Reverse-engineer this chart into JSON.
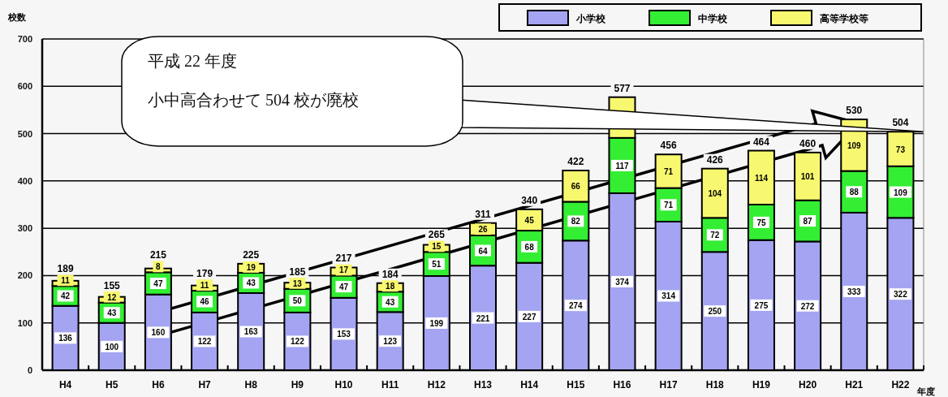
{
  "chart_data": {
    "type": "bar",
    "stacked": true,
    "ylabel": "校数",
    "xlabel": "年度",
    "categories": [
      "H4",
      "H5",
      "H6",
      "H7",
      "H8",
      "H9",
      "H10",
      "H11",
      "H12",
      "H13",
      "H14",
      "H15",
      "H16",
      "H17",
      "H18",
      "H19",
      "H20",
      "H21",
      "H22"
    ],
    "series": [
      {
        "name": "小学校",
        "color": "#a4a4f2",
        "values": [
          136,
          100,
          160,
          122,
          163,
          122,
          153,
          123,
          199,
          221,
          227,
          274,
          374,
          314,
          250,
          275,
          272,
          333,
          322
        ],
        "value_labels": [
          "136",
          "100",
          "160",
          "122",
          "163",
          "122",
          "153",
          "123",
          "199",
          "221",
          "227",
          "274",
          "374",
          "314",
          "250",
          "275",
          "272",
          "333",
          "322"
        ]
      },
      {
        "name": "中学校",
        "color": "#33ee33",
        "values": [
          42,
          43,
          47,
          46,
          43,
          50,
          47,
          43,
          51,
          64,
          68,
          82,
          117,
          71,
          72,
          75,
          87,
          88,
          109
        ],
        "value_labels": [
          "42",
          "43",
          "47",
          "46",
          "43",
          "50",
          "47",
          "43",
          "51",
          "64",
          "68",
          "82",
          "117",
          "71",
          "72",
          "75",
          "87",
          "88",
          "109"
        ]
      },
      {
        "name": "高等学校等",
        "color": "#f8f870",
        "values": [
          11,
          12,
          8,
          11,
          19,
          13,
          17,
          18,
          15,
          26,
          45,
          66,
          86,
          71,
          104,
          114,
          101,
          109,
          73
        ],
        "value_labels": [
          "11",
          "12",
          "8",
          "11",
          "19",
          "13",
          "17",
          "18",
          "15",
          "26",
          "45",
          "66",
          null,
          "71",
          "104",
          "114",
          "101",
          "109",
          "73"
        ]
      }
    ],
    "totals": [
      "189",
      "155",
      "215",
      "179",
      "225",
      "185",
      "217",
      "184",
      "265",
      "311",
      "340",
      "422",
      "577",
      "456",
      "426",
      "464",
      "460",
      "530",
      "504"
    ],
    "ylim": [
      0,
      700
    ],
    "yticks": [
      0,
      100,
      200,
      300,
      400,
      500,
      600,
      700
    ],
    "grid": "y",
    "legend": "top right",
    "annotations": [
      "平成 22 年度",
      "小中高合わせて 504 校が廃校"
    ]
  }
}
